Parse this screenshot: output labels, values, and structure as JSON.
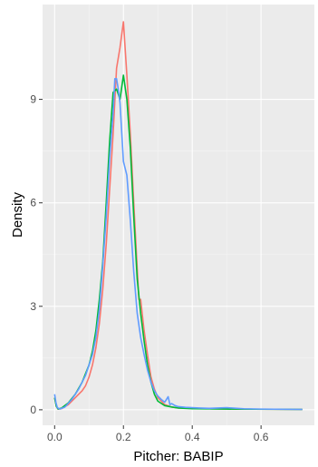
{
  "chart_data": {
    "type": "line",
    "title": "",
    "xlabel": "Pitcher: BABIP",
    "ylabel": "Density",
    "xlim": [
      -0.035,
      0.755
    ],
    "ylim": [
      -0.45,
      11.75
    ],
    "x_ticks": [
      0.0,
      0.2,
      0.4,
      0.6
    ],
    "x_tick_labels": [
      "0.0",
      "0.2",
      "0.4",
      "0.6"
    ],
    "y_ticks": [
      0,
      3,
      6,
      9
    ],
    "y_tick_labels": [
      "0",
      "3",
      "6",
      "9"
    ],
    "grid": true,
    "legend": "none",
    "colors": {
      "panel_background": "#EBEBEB",
      "grid_major": "#FFFFFF",
      "grid_minor": "#F5F5F5",
      "tick_text": "#4D4D4D"
    },
    "series": [
      {
        "color": "#F8766D",
        "points": [
          [
            0.0,
            0.35
          ],
          [
            0.005,
            0.1
          ],
          [
            0.01,
            0.02
          ],
          [
            0.02,
            0.03
          ],
          [
            0.04,
            0.15
          ],
          [
            0.06,
            0.35
          ],
          [
            0.08,
            0.55
          ],
          [
            0.09,
            0.7
          ],
          [
            0.1,
            0.95
          ],
          [
            0.11,
            1.3
          ],
          [
            0.12,
            1.8
          ],
          [
            0.13,
            2.5
          ],
          [
            0.14,
            3.5
          ],
          [
            0.15,
            4.8
          ],
          [
            0.16,
            6.4
          ],
          [
            0.17,
            8.0
          ],
          [
            0.18,
            9.9
          ],
          [
            0.19,
            10.5
          ],
          [
            0.2,
            11.25
          ],
          [
            0.21,
            9.7
          ],
          [
            0.22,
            8.0
          ],
          [
            0.23,
            6.0
          ],
          [
            0.24,
            4.1
          ],
          [
            0.245,
            3.2
          ],
          [
            0.25,
            3.2
          ],
          [
            0.26,
            2.3
          ],
          [
            0.27,
            1.6
          ],
          [
            0.28,
            0.95
          ],
          [
            0.29,
            0.6
          ],
          [
            0.3,
            0.35
          ],
          [
            0.32,
            0.15
          ],
          [
            0.34,
            0.08
          ],
          [
            0.36,
            0.05
          ],
          [
            0.4,
            0.04
          ],
          [
            0.5,
            0.02
          ],
          [
            0.72,
            0.01
          ]
        ]
      },
      {
        "color": "#00BA38",
        "points": [
          [
            0.0,
            0.35
          ],
          [
            0.005,
            0.1
          ],
          [
            0.01,
            0.02
          ],
          [
            0.02,
            0.05
          ],
          [
            0.04,
            0.2
          ],
          [
            0.06,
            0.45
          ],
          [
            0.08,
            0.8
          ],
          [
            0.09,
            1.05
          ],
          [
            0.1,
            1.3
          ],
          [
            0.11,
            1.7
          ],
          [
            0.12,
            2.3
          ],
          [
            0.13,
            3.2
          ],
          [
            0.14,
            4.3
          ],
          [
            0.15,
            6.0
          ],
          [
            0.16,
            7.8
          ],
          [
            0.17,
            9.2
          ],
          [
            0.18,
            9.3
          ],
          [
            0.19,
            9.0
          ],
          [
            0.2,
            9.7
          ],
          [
            0.21,
            9.0
          ],
          [
            0.22,
            7.6
          ],
          [
            0.23,
            5.6
          ],
          [
            0.24,
            3.8
          ],
          [
            0.25,
            2.8
          ],
          [
            0.26,
            2.0
          ],
          [
            0.27,
            1.3
          ],
          [
            0.28,
            0.8
          ],
          [
            0.29,
            0.45
          ],
          [
            0.3,
            0.25
          ],
          [
            0.32,
            0.12
          ],
          [
            0.34,
            0.08
          ],
          [
            0.36,
            0.05
          ],
          [
            0.4,
            0.03
          ],
          [
            0.5,
            0.02
          ],
          [
            0.72,
            0.01
          ]
        ]
      },
      {
        "color": "#619CFF",
        "points": [
          [
            0.0,
            0.45
          ],
          [
            0.004,
            0.2
          ],
          [
            0.008,
            0.06
          ],
          [
            0.015,
            0.02
          ],
          [
            0.03,
            0.08
          ],
          [
            0.05,
            0.3
          ],
          [
            0.07,
            0.6
          ],
          [
            0.09,
            1.0
          ],
          [
            0.1,
            1.3
          ],
          [
            0.11,
            1.6
          ],
          [
            0.12,
            2.1
          ],
          [
            0.13,
            2.9
          ],
          [
            0.14,
            4.2
          ],
          [
            0.15,
            5.6
          ],
          [
            0.16,
            7.3
          ],
          [
            0.17,
            8.6
          ],
          [
            0.175,
            9.6
          ],
          [
            0.18,
            9.6
          ],
          [
            0.185,
            9.3
          ],
          [
            0.19,
            8.9
          ],
          [
            0.2,
            7.2
          ],
          [
            0.21,
            6.8
          ],
          [
            0.22,
            5.5
          ],
          [
            0.23,
            4.0
          ],
          [
            0.24,
            2.8
          ],
          [
            0.25,
            2.1
          ],
          [
            0.26,
            1.6
          ],
          [
            0.27,
            1.15
          ],
          [
            0.28,
            0.8
          ],
          [
            0.29,
            0.55
          ],
          [
            0.3,
            0.4
          ],
          [
            0.31,
            0.3
          ],
          [
            0.32,
            0.22
          ],
          [
            0.33,
            0.38
          ],
          [
            0.335,
            0.15
          ],
          [
            0.34,
            0.18
          ],
          [
            0.35,
            0.12
          ],
          [
            0.36,
            0.09
          ],
          [
            0.38,
            0.07
          ],
          [
            0.4,
            0.06
          ],
          [
            0.42,
            0.05
          ],
          [
            0.45,
            0.04
          ],
          [
            0.5,
            0.06
          ],
          [
            0.55,
            0.03
          ],
          [
            0.6,
            0.02
          ],
          [
            0.72,
            0.01
          ]
        ]
      }
    ]
  }
}
